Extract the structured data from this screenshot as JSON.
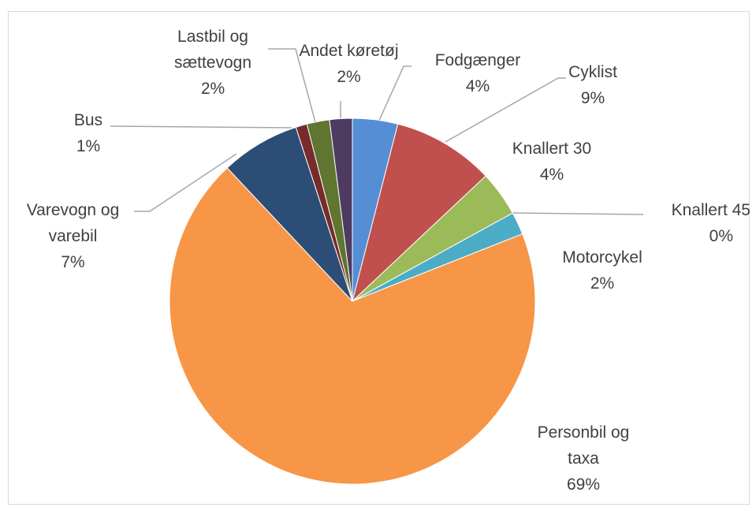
{
  "chart_data": {
    "type": "pie",
    "categories": [
      "Fodgænger",
      "Cyklist",
      "Knallert 30",
      "Knallert 45",
      "Motorcykel",
      "Personbil og taxa",
      "Varevogn og varebil",
      "Bus",
      "Lastbil og sættevogn",
      "Andet køretøj"
    ],
    "values": [
      4,
      9,
      4,
      0,
      2,
      69,
      7,
      1,
      2,
      2
    ],
    "value_labels": [
      "4%",
      "9%",
      "4%",
      "0%",
      "2%",
      "69%",
      "7%",
      "1%",
      "2%",
      "2%"
    ],
    "colors": [
      "#558ed5",
      "#c0504d",
      "#9bbb59",
      "#8064a2",
      "#4bacc6",
      "#f79646",
      "#2c4d75",
      "#772c2a",
      "#5f7530",
      "#4d3b62"
    ]
  }
}
